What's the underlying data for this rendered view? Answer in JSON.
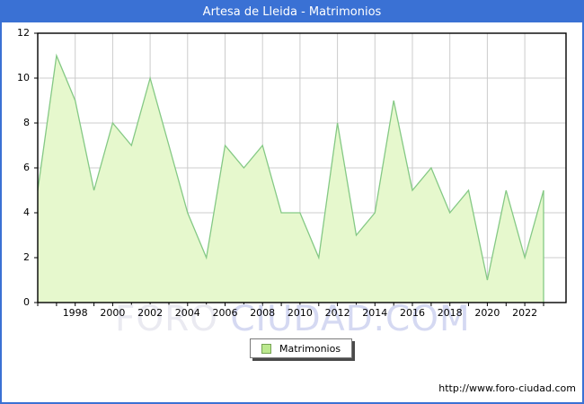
{
  "title_bar": {
    "title": "Artesa de Lleida - Matrimonios"
  },
  "legend": {
    "label": "Matrimonios"
  },
  "watermark": {
    "text_light": "FORO ",
    "text_blue": "CIUDAD.COM"
  },
  "footer": {
    "url": "http://www.foro-ciudad.com"
  },
  "colors": {
    "accent_blue": "#3a71d4",
    "area_fill": "#e6f8cd",
    "area_line": "#85c985",
    "grid": "#cccccc",
    "frame": "#000000",
    "tick_label": "#000000",
    "title_text": "#ffffff",
    "watermark_light": "#eaeaf1",
    "watermark_blue": "#d5d9f2",
    "legend_swatch_fill": "#bce98f",
    "legend_swatch_border": "#76a353"
  },
  "chart_data": {
    "type": "area",
    "title": "Artesa de Lleida - Matrimonios",
    "series_name": "Matrimonios",
    "x": [
      1996,
      1997,
      1998,
      1999,
      2000,
      2001,
      2002,
      2003,
      2004,
      2005,
      2006,
      2007,
      2008,
      2009,
      2010,
      2011,
      2012,
      2013,
      2014,
      2015,
      2016,
      2017,
      2018,
      2019,
      2020,
      2021,
      2022,
      2023
    ],
    "values": [
      5,
      11,
      9,
      5,
      8,
      7,
      10,
      7,
      4,
      2,
      7,
      6,
      7,
      4,
      4,
      2,
      8,
      3,
      4,
      9,
      5,
      6,
      4,
      5,
      1,
      5,
      2,
      5
    ],
    "xlabel": "",
    "ylabel": "",
    "ylim": [
      0,
      12
    ],
    "y_ticks": [
      0,
      2,
      4,
      6,
      8,
      10,
      12
    ],
    "x_tick_labels": [
      "1998",
      "2000",
      "2002",
      "2004",
      "2006",
      "2008",
      "2010",
      "2012",
      "2014",
      "2016",
      "2018",
      "2020",
      "2022"
    ],
    "grid": true,
    "legend_position": "bottom-center"
  }
}
